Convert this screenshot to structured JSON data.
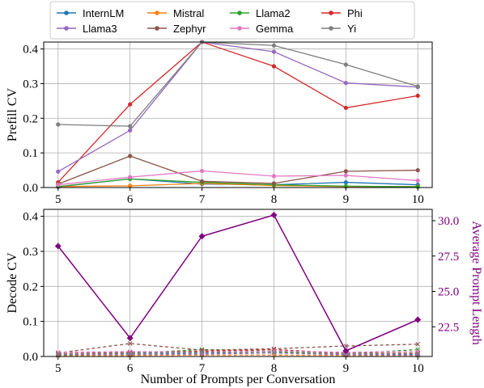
{
  "chart_data": [
    {
      "type": "line",
      "title": "",
      "xlabel": "",
      "ylabel": "Prefill CV",
      "x": [
        5,
        6,
        7,
        8,
        9,
        10
      ],
      "xlim": [
        4.8,
        10.2
      ],
      "ylim": [
        0,
        0.42
      ],
      "yticks": [
        0.0,
        0.1,
        0.2,
        0.3,
        0.4
      ],
      "grid": true,
      "legend": "top, 4 columns",
      "series": [
        {
          "name": "InternLM",
          "color": "#1f77b4",
          "values": [
            0.002,
            0.025,
            0.01,
            0.008,
            0.015,
            0.008
          ]
        },
        {
          "name": "Mistral",
          "color": "#ff7f0e",
          "values": [
            0.003,
            0.005,
            0.012,
            0.006,
            0.003,
            0.003
          ]
        },
        {
          "name": "Llama2",
          "color": "#2ca02c",
          "values": [
            0.003,
            0.025,
            0.015,
            0.008,
            0.004,
            0.002
          ]
        },
        {
          "name": "Phi",
          "color": "#d62728",
          "values": [
            0.015,
            0.24,
            0.42,
            0.35,
            0.23,
            0.265
          ]
        },
        {
          "name": "Llama3",
          "color": "#9467bd",
          "values": [
            0.046,
            0.165,
            0.42,
            0.392,
            0.302,
            0.29
          ]
        },
        {
          "name": "Zephyr",
          "color": "#8c564b",
          "values": [
            0.01,
            0.091,
            0.018,
            0.012,
            0.047,
            0.05
          ]
        },
        {
          "name": "Gemma",
          "color": "#e377c2",
          "values": [
            0.008,
            0.03,
            0.048,
            0.033,
            0.035,
            0.02
          ]
        },
        {
          "name": "Yi",
          "color": "#7f7f7f",
          "values": [
            0.182,
            0.177,
            0.42,
            0.41,
            0.355,
            0.292
          ]
        }
      ]
    },
    {
      "type": "line",
      "title": "",
      "xlabel": "Number of Prompts per Conversation",
      "ylabel": "Decode CV",
      "y2label": "Average Prompt Length",
      "x": [
        5,
        6,
        7,
        8,
        9,
        10
      ],
      "xlim": [
        4.8,
        10.2
      ],
      "ylim": [
        0,
        0.42
      ],
      "yticks": [
        0.0,
        0.1,
        0.2,
        0.3,
        0.4
      ],
      "y2lim": [
        20.4,
        30.8
      ],
      "y2ticks": [
        22.5,
        25.0,
        27.5,
        30.0
      ],
      "grid": true,
      "series": [
        {
          "name": "InternLM",
          "color": "#1f77b4",
          "style": "dashed",
          "values": [
            0.006,
            0.009,
            0.01,
            0.012,
            0.008,
            0.006
          ]
        },
        {
          "name": "Mistral",
          "color": "#ff7f0e",
          "style": "dashed",
          "values": [
            0.002,
            0.003,
            0.004,
            0.004,
            0.003,
            0.003
          ]
        },
        {
          "name": "Llama2",
          "color": "#2ca02c",
          "style": "dashed",
          "values": [
            0.004,
            0.008,
            0.02,
            0.015,
            0.007,
            0.02
          ]
        },
        {
          "name": "Phi",
          "color": "#d62728",
          "style": "dashed",
          "values": [
            0.008,
            0.012,
            0.015,
            0.02,
            0.009,
            0.01
          ]
        },
        {
          "name": "Llama3",
          "color": "#9467bd",
          "style": "dashed",
          "values": [
            0.005,
            0.006,
            0.007,
            0.01,
            0.005,
            0.004
          ]
        },
        {
          "name": "Zephyr",
          "color": "#8c564b",
          "style": "dashed",
          "values": [
            0.01,
            0.037,
            0.018,
            0.022,
            0.03,
            0.035
          ]
        },
        {
          "name": "Gemma",
          "color": "#e377c2",
          "style": "dashed",
          "values": [
            0.012,
            0.014,
            0.012,
            0.016,
            0.012,
            0.015
          ]
        },
        {
          "name": "Yi",
          "color": "#7f7f7f",
          "style": "dashed",
          "values": [
            0.007,
            0.01,
            0.012,
            0.011,
            0.008,
            0.008
          ]
        },
        {
          "name": "Average Prompt Length",
          "axis": "right",
          "color": "#800080",
          "marker": "diamond",
          "values": [
            28.2,
            21.7,
            28.9,
            30.4,
            20.8,
            23.0
          ]
        }
      ]
    }
  ]
}
